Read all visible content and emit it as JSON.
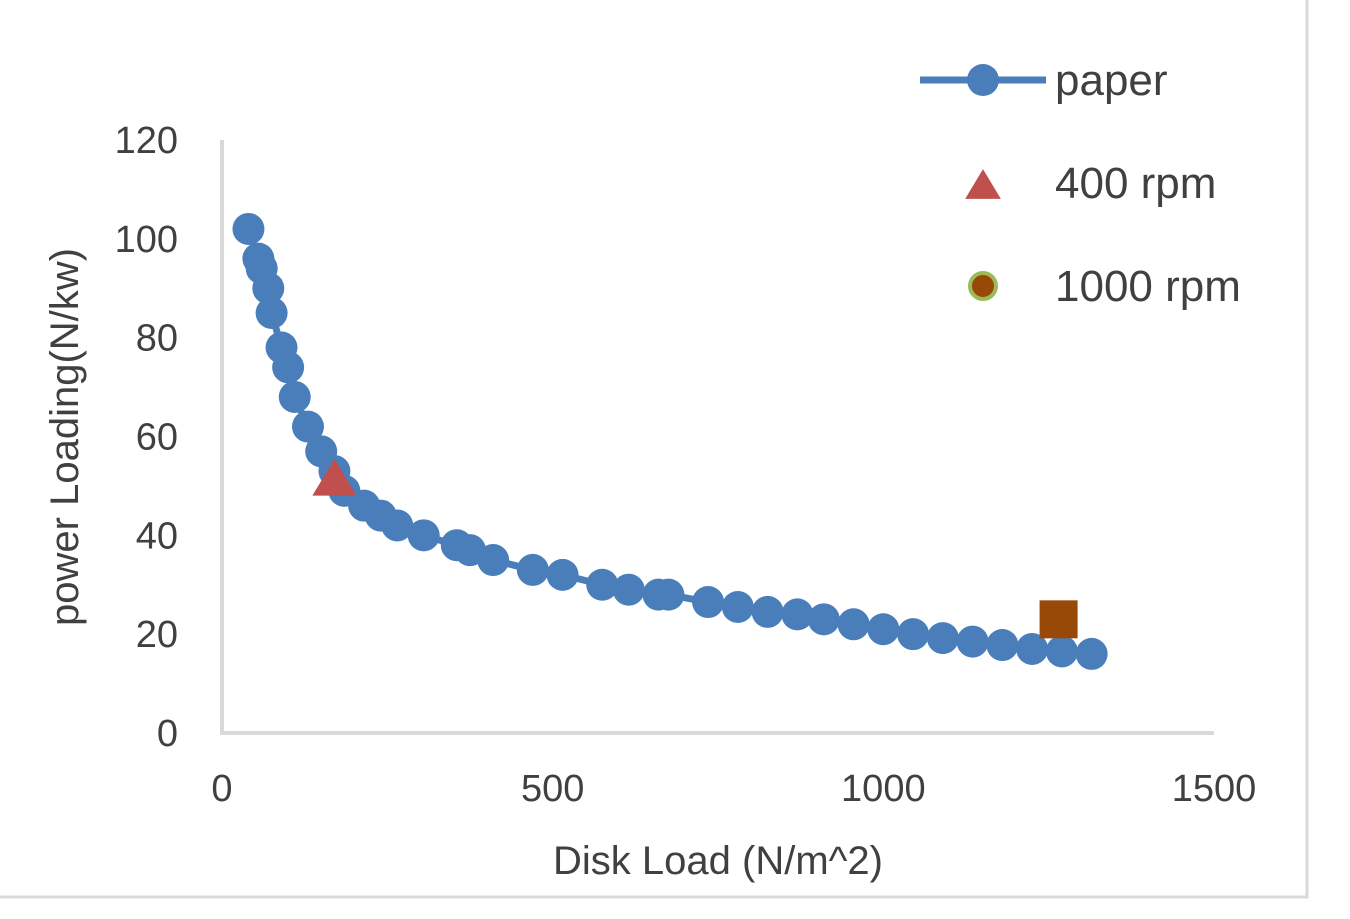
{
  "chart_data": {
    "type": "scatter",
    "title": "",
    "xlabel": "Disk Load (N/m^2)",
    "ylabel": "power Loading(N/kw)",
    "xlim": [
      0,
      1500
    ],
    "ylim": [
      0,
      120
    ],
    "xticks": [
      0,
      500,
      1000,
      1500
    ],
    "yticks": [
      0,
      20,
      40,
      60,
      80,
      100,
      120
    ],
    "grid": false,
    "legend": "top-right",
    "series": [
      {
        "name": "paper",
        "marker": "circle",
        "line": true,
        "color": "#4a7ebb",
        "x": [
          40,
          55,
          60,
          70,
          75,
          90,
          100,
          110,
          130,
          150,
          170,
          185,
          215,
          240,
          265,
          305,
          355,
          375,
          410,
          470,
          515,
          575,
          615,
          660,
          675,
          735,
          780,
          825,
          870,
          910,
          955,
          1000,
          1045,
          1090,
          1135,
          1180,
          1225,
          1270,
          1315
        ],
        "y": [
          102,
          96,
          94,
          90,
          85,
          78,
          74,
          68,
          62,
          57,
          53,
          49,
          46,
          44,
          42,
          40,
          38,
          37,
          35,
          33,
          32,
          30,
          29,
          28,
          28,
          26.5,
          25.5,
          24.5,
          24,
          23,
          22,
          21,
          20,
          19.2,
          18.5,
          17.8,
          17,
          16.5,
          16
        ]
      },
      {
        "name": "400 rpm",
        "marker": "triangle",
        "line": false,
        "color": "#c0504d",
        "x": [
          170
        ],
        "y": [
          51
        ]
      },
      {
        "name": "1000 rpm",
        "marker": "square",
        "line": false,
        "color": "#984807",
        "legend_marker": "circle",
        "legend_edge_color": "#9bbb59",
        "x": [
          1265
        ],
        "y": [
          23
        ]
      }
    ]
  }
}
